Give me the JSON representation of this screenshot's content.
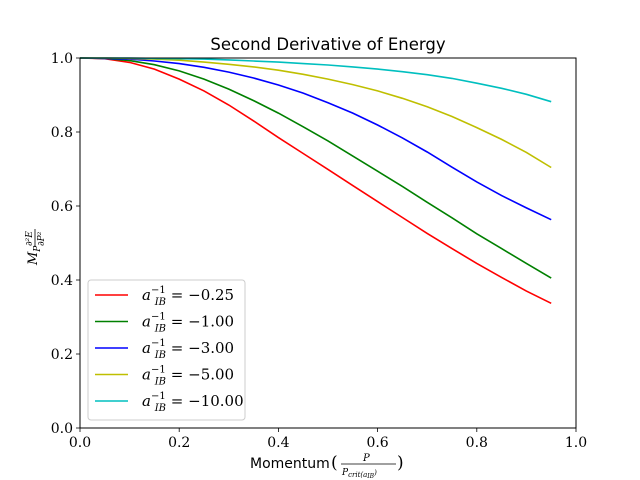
{
  "chart_data": {
    "type": "line",
    "title": "Second Derivative of Energy",
    "xlabel": "Momentum",
    "ylabel": "M_P ∂²E/∂P²",
    "xlim": [
      0.0,
      1.0
    ],
    "ylim": [
      0.0,
      1.0
    ],
    "x_ticks": [
      0.0,
      0.2,
      0.4,
      0.6,
      0.8,
      1.0
    ],
    "y_ticks": [
      0.0,
      0.2,
      0.4,
      0.6,
      0.8,
      1.0
    ],
    "x_tick_labels": [
      "0.0",
      "0.2",
      "0.4",
      "0.6",
      "0.8",
      "1.0"
    ],
    "y_tick_labels": [
      "0.0",
      "0.2",
      "0.4",
      "0.6",
      "0.8",
      "1.0"
    ],
    "grid": false,
    "legend_position": "lower-left",
    "x": [
      0.0,
      0.05,
      0.1,
      0.15,
      0.2,
      0.25,
      0.3,
      0.35,
      0.4,
      0.45,
      0.5,
      0.55,
      0.6,
      0.65,
      0.7,
      0.75,
      0.8,
      0.85,
      0.9,
      0.95
    ],
    "series": [
      {
        "name": "a_IB^-1 = -0.25",
        "label_value": "−0.25",
        "color": "#ff0000",
        "values": [
          1.0,
          0.998,
          0.988,
          0.97,
          0.943,
          0.911,
          0.873,
          0.83,
          0.785,
          0.742,
          0.699,
          0.655,
          0.612,
          0.569,
          0.526,
          0.485,
          0.445,
          0.407,
          0.37,
          0.337
        ]
      },
      {
        "name": "a_IB^-1 = -1.00",
        "label_value": "−1.00",
        "color": "#008000",
        "values": [
          1.0,
          0.999,
          0.993,
          0.982,
          0.965,
          0.943,
          0.916,
          0.885,
          0.851,
          0.814,
          0.776,
          0.735,
          0.694,
          0.653,
          0.61,
          0.568,
          0.525,
          0.485,
          0.445,
          0.405
        ]
      },
      {
        "name": "a_IB^-1 = -3.00",
        "label_value": "−3.00",
        "color": "#0000ff",
        "values": [
          1.0,
          0.999,
          0.997,
          0.992,
          0.985,
          0.975,
          0.962,
          0.946,
          0.927,
          0.905,
          0.879,
          0.851,
          0.819,
          0.784,
          0.746,
          0.705,
          0.665,
          0.628,
          0.595,
          0.563
        ]
      },
      {
        "name": "a_IB^-1 = -5.00",
        "label_value": "−5.00",
        "color": "#bfbf00",
        "values": [
          1.0,
          1.0,
          0.999,
          0.997,
          0.994,
          0.989,
          0.983,
          0.976,
          0.967,
          0.956,
          0.943,
          0.928,
          0.911,
          0.891,
          0.868,
          0.842,
          0.812,
          0.78,
          0.745,
          0.704
        ]
      },
      {
        "name": "a_IB^-1 = -10.00",
        "label_value": "−10.00",
        "color": "#00bfbf",
        "values": [
          1.0,
          1.0,
          1.0,
          0.999,
          0.998,
          0.997,
          0.995,
          0.992,
          0.989,
          0.985,
          0.981,
          0.976,
          0.97,
          0.963,
          0.955,
          0.945,
          0.932,
          0.918,
          0.902,
          0.882
        ]
      }
    ]
  }
}
